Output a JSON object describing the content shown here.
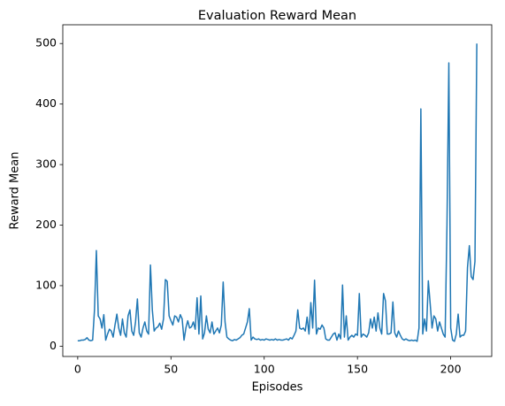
{
  "chart_data": {
    "type": "line",
    "title": "Evaluation Reward Mean",
    "xlabel": "Episodes",
    "ylabel": "Reward Mean",
    "x": [
      0,
      1,
      2,
      3,
      4,
      5,
      6,
      7,
      8,
      9,
      10,
      11,
      12,
      13,
      14,
      15,
      16,
      17,
      18,
      19,
      20,
      21,
      22,
      23,
      24,
      25,
      26,
      27,
      28,
      29,
      30,
      31,
      32,
      33,
      34,
      35,
      36,
      37,
      38,
      39,
      40,
      41,
      42,
      43,
      44,
      45,
      46,
      47,
      48,
      49,
      50,
      51,
      52,
      53,
      54,
      55,
      56,
      57,
      58,
      59,
      60,
      61,
      62,
      63,
      64,
      65,
      66,
      67,
      68,
      69,
      70,
      71,
      72,
      73,
      74,
      75,
      76,
      77,
      78,
      79,
      80,
      81,
      82,
      83,
      84,
      85,
      86,
      87,
      88,
      89,
      90,
      91,
      92,
      93,
      94,
      95,
      96,
      97,
      98,
      99,
      100,
      101,
      102,
      103,
      104,
      105,
      106,
      107,
      108,
      109,
      110,
      111,
      112,
      113,
      114,
      115,
      116,
      117,
      118,
      119,
      120,
      121,
      122,
      123,
      124,
      125,
      126,
      127,
      128,
      129,
      130,
      131,
      132,
      133,
      134,
      135,
      136,
      137,
      138,
      139,
      140,
      141,
      142,
      143,
      144,
      145,
      146,
      147,
      148,
      149,
      150,
      151,
      152,
      153,
      154,
      155,
      156,
      157,
      158,
      159,
      160,
      161,
      162,
      163,
      164,
      165,
      166,
      167,
      168,
      169,
      170,
      171,
      172,
      173,
      174,
      175,
      176,
      177,
      178,
      179,
      180,
      181,
      182,
      183,
      184,
      185,
      186,
      187,
      188,
      189,
      190,
      191,
      192,
      193,
      194,
      195,
      196,
      197,
      198,
      199,
      200,
      201,
      202,
      203,
      204,
      205,
      206,
      207,
      208,
      209,
      210,
      211,
      212,
      213,
      214
    ],
    "values": [
      9,
      9,
      10,
      10,
      11,
      14,
      10,
      9,
      10,
      60,
      158,
      50,
      45,
      30,
      52,
      10,
      20,
      28,
      25,
      15,
      35,
      53,
      30,
      18,
      45,
      22,
      15,
      50,
      60,
      25,
      18,
      40,
      78,
      22,
      15,
      30,
      40,
      25,
      20,
      134,
      60,
      25,
      30,
      32,
      38,
      28,
      45,
      110,
      107,
      50,
      42,
      35,
      50,
      48,
      40,
      52,
      45,
      10,
      30,
      42,
      30,
      32,
      40,
      28,
      80,
      20,
      83,
      12,
      22,
      50,
      28,
      22,
      40,
      20,
      25,
      30,
      22,
      35,
      106,
      40,
      15,
      12,
      10,
      9,
      11,
      10,
      12,
      14,
      18,
      20,
      30,
      40,
      62,
      10,
      15,
      12,
      11,
      12,
      10,
      11,
      10,
      12,
      11,
      10,
      11,
      10,
      12,
      10,
      11,
      10,
      10,
      11,
      12,
      10,
      14,
      12,
      18,
      25,
      60,
      30,
      28,
      30,
      25,
      48,
      20,
      72,
      30,
      109,
      20,
      30,
      28,
      35,
      30,
      12,
      10,
      10,
      15,
      20,
      22,
      10,
      20,
      12,
      101,
      15,
      50,
      10,
      15,
      18,
      15,
      20,
      18,
      87,
      15,
      20,
      18,
      15,
      22,
      45,
      30,
      48,
      25,
      55,
      30,
      20,
      87,
      75,
      20,
      20,
      22,
      73,
      22,
      15,
      25,
      18,
      12,
      10,
      12,
      10,
      9,
      10,
      9,
      10,
      8,
      30,
      392,
      20,
      45,
      25,
      108,
      70,
      30,
      50,
      45,
      25,
      40,
      30,
      20,
      15,
      200,
      468,
      30,
      10,
      8,
      20,
      53,
      15,
      18,
      18,
      25,
      130,
      166,
      115,
      110,
      140,
      500
    ],
    "color": "#1f77b4",
    "xlim": [
      -8,
      222
    ],
    "ylim": [
      -17,
      531
    ],
    "xticks": [
      0,
      50,
      100,
      150,
      200
    ],
    "yticks": [
      0,
      100,
      200,
      300,
      400,
      500
    ],
    "grid": false
  }
}
